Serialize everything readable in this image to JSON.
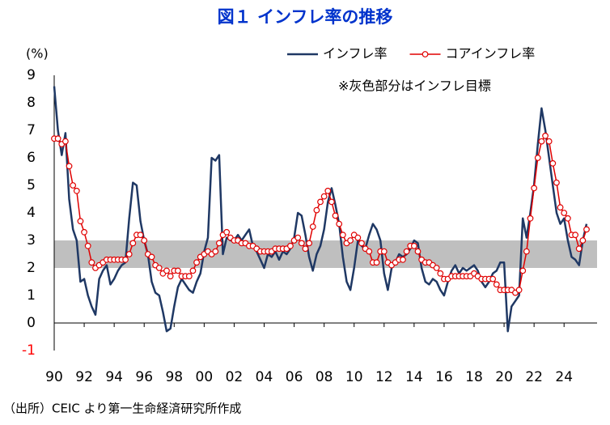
{
  "chart_data": {
    "type": "line",
    "title": "図１ インフレ率の推移",
    "y_label": "(%)",
    "annotation": "※灰色部分はインフレ目標",
    "source": "（出所）CEIC より第一生命経済研究所作成",
    "target_band": [
      2,
      3
    ],
    "band_color": "#bfbfbf",
    "legend_position": "top-right",
    "xlim": [
      1990,
      2026.2
    ],
    "ylim": [
      -1,
      9
    ],
    "yticks": [
      -1,
      0,
      1,
      2,
      3,
      4,
      5,
      6,
      7,
      8,
      9
    ],
    "xticks": [
      {
        "value": 1990,
        "label": "90"
      },
      {
        "value": 1992,
        "label": "92"
      },
      {
        "value": 1994,
        "label": "94"
      },
      {
        "value": 1996,
        "label": "96"
      },
      {
        "value": 1998,
        "label": "98"
      },
      {
        "value": 2000,
        "label": "00"
      },
      {
        "value": 2002,
        "label": "02"
      },
      {
        "value": 2004,
        "label": "04"
      },
      {
        "value": 2006,
        "label": "06"
      },
      {
        "value": 2008,
        "label": "08"
      },
      {
        "value": 2010,
        "label": "10"
      },
      {
        "value": 2012,
        "label": "12"
      },
      {
        "value": 2014,
        "label": "14"
      },
      {
        "value": 2016,
        "label": "16"
      },
      {
        "value": 2018,
        "label": "18"
      },
      {
        "value": 2020,
        "label": "20"
      },
      {
        "value": 2022,
        "label": "22"
      },
      {
        "value": 2024,
        "label": "24"
      }
    ],
    "x": [
      1990,
      1990.25,
      1990.5,
      1990.75,
      1991,
      1991.25,
      1991.5,
      1991.75,
      1992,
      1992.25,
      1992.5,
      1992.75,
      1993,
      1993.25,
      1993.5,
      1993.75,
      1994,
      1994.25,
      1994.5,
      1994.75,
      1995,
      1995.25,
      1995.5,
      1995.75,
      1996,
      1996.25,
      1996.5,
      1996.75,
      1997,
      1997.25,
      1997.5,
      1997.75,
      1998,
      1998.25,
      1998.5,
      1998.75,
      1999,
      1999.25,
      1999.5,
      1999.75,
      2000,
      2000.25,
      2000.5,
      2000.75,
      2001,
      2001.25,
      2001.5,
      2001.75,
      2002,
      2002.25,
      2002.5,
      2002.75,
      2003,
      2003.25,
      2003.5,
      2003.75,
      2004,
      2004.25,
      2004.5,
      2004.75,
      2005,
      2005.25,
      2005.5,
      2005.75,
      2006,
      2006.25,
      2006.5,
      2006.75,
      2007,
      2007.25,
      2007.5,
      2007.75,
      2008,
      2008.25,
      2008.5,
      2008.75,
      2009,
      2009.25,
      2009.5,
      2009.75,
      2010,
      2010.25,
      2010.5,
      2010.75,
      2011,
      2011.25,
      2011.5,
      2011.75,
      2012,
      2012.25,
      2012.5,
      2012.75,
      2013,
      2013.25,
      2013.5,
      2013.75,
      2014,
      2014.25,
      2014.5,
      2014.75,
      2015,
      2015.25,
      2015.5,
      2015.75,
      2016,
      2016.25,
      2016.5,
      2016.75,
      2017,
      2017.25,
      2017.5,
      2017.75,
      2018,
      2018.25,
      2018.5,
      2018.75,
      2019,
      2019.25,
      2019.5,
      2019.75,
      2020,
      2020.25,
      2020.5,
      2020.75,
      2021,
      2021.25,
      2021.5,
      2021.75,
      2022,
      2022.25,
      2022.5,
      2022.75,
      2023,
      2023.25,
      2023.5,
      2023.75,
      2024,
      2024.25,
      2024.5,
      2024.75,
      2025,
      2025.25,
      2025.5
    ],
    "series": [
      {
        "name": "インフレ率",
        "color": "#1f3864",
        "marker": false,
        "values": [
          8.6,
          7.0,
          6.1,
          6.9,
          4.5,
          3.4,
          3.0,
          1.5,
          1.6,
          1.0,
          0.6,
          0.3,
          1.6,
          1.9,
          2.1,
          1.4,
          1.6,
          1.9,
          2.1,
          2.2,
          3.8,
          5.1,
          5.0,
          3.7,
          3.0,
          2.5,
          1.5,
          1.1,
          1.0,
          0.4,
          -0.3,
          -0.2,
          0.6,
          1.3,
          1.6,
          1.4,
          1.2,
          1.1,
          1.5,
          1.8,
          2.6,
          3.1,
          6.0,
          5.9,
          6.1,
          2.5,
          3.1,
          3.0,
          3.0,
          3.2,
          3.0,
          3.2,
          3.4,
          2.8,
          2.6,
          2.3,
          2.0,
          2.5,
          2.4,
          2.6,
          2.3,
          2.6,
          2.5,
          2.7,
          3.1,
          4.0,
          3.9,
          3.2,
          2.4,
          1.9,
          2.5,
          2.8,
          3.4,
          4.4,
          4.9,
          4.3,
          3.6,
          2.4,
          1.5,
          1.2,
          2.0,
          3.0,
          2.8,
          2.7,
          3.2,
          3.6,
          3.4,
          3.0,
          1.8,
          1.2,
          2.0,
          2.2,
          2.5,
          2.4,
          2.5,
          2.7,
          3.0,
          2.9,
          2.0,
          1.5,
          1.4,
          1.6,
          1.5,
          1.2,
          1.0,
          1.5,
          1.9,
          2.1,
          1.8,
          2.0,
          1.9,
          2.0,
          2.1,
          1.9,
          1.5,
          1.3,
          1.5,
          1.8,
          1.9,
          2.2,
          2.2,
          -0.3,
          0.6,
          0.8,
          1.0,
          3.8,
          3.1,
          4.0,
          5.0,
          6.5,
          7.8,
          7.0,
          6.0,
          5.0,
          4.0,
          3.6,
          3.8,
          3.0,
          2.4,
          2.3,
          2.1,
          3.0,
          3.6
        ]
      },
      {
        "name": "コアインフレ率",
        "color": "#e00000",
        "marker": true,
        "values": [
          6.7,
          6.7,
          6.5,
          6.6,
          5.7,
          5.0,
          4.8,
          3.7,
          3.3,
          2.8,
          2.2,
          2.0,
          2.1,
          2.2,
          2.3,
          2.3,
          2.3,
          2.3,
          2.3,
          2.3,
          2.5,
          2.9,
          3.2,
          3.2,
          3.0,
          2.5,
          2.4,
          2.1,
          2.0,
          1.8,
          1.9,
          1.7,
          1.9,
          1.9,
          1.7,
          1.7,
          1.7,
          1.9,
          2.2,
          2.4,
          2.5,
          2.6,
          2.5,
          2.6,
          2.9,
          3.2,
          3.3,
          3.1,
          3.0,
          3.0,
          2.9,
          2.9,
          2.8,
          2.8,
          2.7,
          2.6,
          2.6,
          2.6,
          2.6,
          2.7,
          2.7,
          2.7,
          2.7,
          2.8,
          3.0,
          3.1,
          2.9,
          2.7,
          2.9,
          3.5,
          4.1,
          4.4,
          4.6,
          4.8,
          4.4,
          3.9,
          3.6,
          3.2,
          2.9,
          3.0,
          3.2,
          3.1,
          2.9,
          2.7,
          2.6,
          2.2,
          2.2,
          2.6,
          2.6,
          2.2,
          2.1,
          2.2,
          2.3,
          2.3,
          2.6,
          2.8,
          2.8,
          2.6,
          2.3,
          2.2,
          2.2,
          2.1,
          2.0,
          1.8,
          1.6,
          1.6,
          1.7,
          1.7,
          1.7,
          1.7,
          1.7,
          1.7,
          1.8,
          1.7,
          1.6,
          1.6,
          1.6,
          1.6,
          1.4,
          1.2,
          1.2,
          1.2,
          1.2,
          1.1,
          1.2,
          1.9,
          2.6,
          3.8,
          4.9,
          6.0,
          6.6,
          6.8,
          6.6,
          5.8,
          5.1,
          4.2,
          4.0,
          3.8,
          3.2,
          3.2,
          2.7,
          3.0,
          3.4
        ]
      }
    ]
  }
}
